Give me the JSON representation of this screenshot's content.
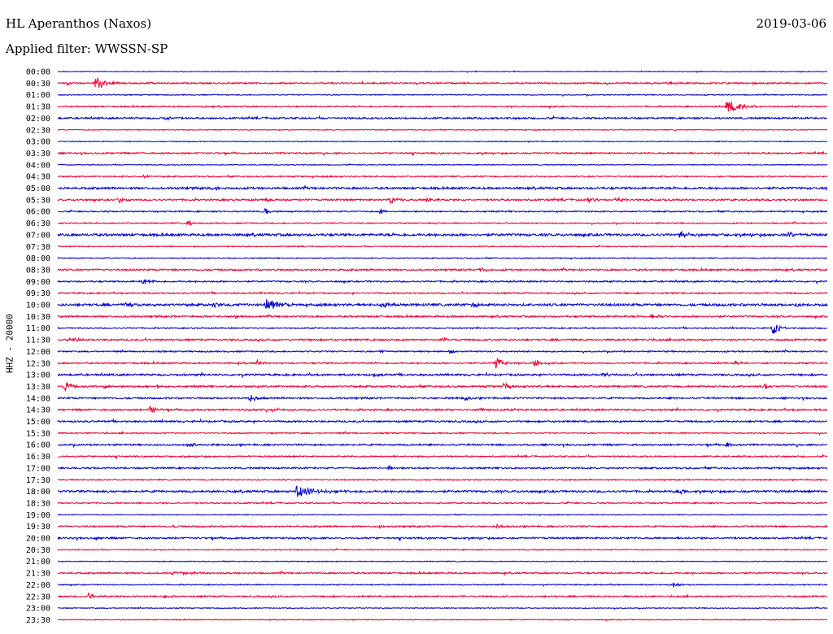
{
  "header": {
    "station": "HL Aperanthos (Naxos)",
    "date": "2019-03-06",
    "filter": "Applied filter: WWSSN-SP"
  },
  "chart_data": {
    "type": "line",
    "title": "HL Aperanthos (Naxos)",
    "subtitle": "Applied filter: WWSSN-SP",
    "ylabel": "HHZ - 20000",
    "rows": [
      "00:00",
      "00:30",
      "01:00",
      "01:30",
      "02:00",
      "02:30",
      "03:00",
      "03:30",
      "04:00",
      "04:30",
      "05:00",
      "05:30",
      "06:00",
      "06:30",
      "07:00",
      "07:30",
      "08:00",
      "08:30",
      "09:00",
      "09:30",
      "10:00",
      "10:30",
      "11:00",
      "11:30",
      "12:00",
      "12:30",
      "13:00",
      "13:30",
      "14:00",
      "14:30",
      "15:00",
      "15:30",
      "16:00",
      "16:30",
      "17:00",
      "17:30",
      "18:00",
      "18:30",
      "19:00",
      "19:30",
      "20:00",
      "20:30",
      "21:00",
      "21:30",
      "22:00",
      "22:30",
      "23:00",
      "23:30"
    ],
    "colors": [
      "#0000cc",
      "#ee0033"
    ],
    "noise": [
      0.4,
      0.9,
      0.6,
      0.8,
      1.0,
      0.5,
      0.5,
      0.9,
      0.5,
      0.8,
      1.2,
      1.0,
      0.8,
      0.7,
      1.4,
      0.6,
      0.6,
      1.0,
      0.9,
      0.8,
      1.4,
      1.0,
      0.7,
      1.0,
      0.8,
      0.9,
      1.1,
      1.1,
      1.0,
      1.0,
      1.0,
      0.8,
      1.0,
      0.8,
      1.0,
      0.7,
      1.2,
      0.8,
      0.5,
      0.9,
      1.0,
      0.6,
      0.5,
      0.9,
      0.6,
      0.9,
      0.5,
      0.5
    ],
    "events": [
      {
        "row": 1,
        "pos": 0.05,
        "amp": 9,
        "dur": 0.03
      },
      {
        "row": 1,
        "pos": 0.12,
        "amp": 2,
        "dur": 0.02
      },
      {
        "row": 1,
        "pos": 0.79,
        "amp": 2,
        "dur": 0.02
      },
      {
        "row": 3,
        "pos": 0.87,
        "amp": 9,
        "dur": 0.05
      },
      {
        "row": 3,
        "pos": 0.19,
        "amp": 2,
        "dur": 0.01
      },
      {
        "row": 4,
        "pos": 0.14,
        "amp": 2,
        "dur": 0.02
      },
      {
        "row": 9,
        "pos": 0.11,
        "amp": 4,
        "dur": 0.02
      },
      {
        "row": 10,
        "pos": 0.2,
        "amp": 3,
        "dur": 0.02
      },
      {
        "row": 11,
        "pos": 0.08,
        "amp": 4,
        "dur": 0.02
      },
      {
        "row": 11,
        "pos": 0.27,
        "amp": 3,
        "dur": 0.02
      },
      {
        "row": 11,
        "pos": 0.43,
        "amp": 6,
        "dur": 0.02
      },
      {
        "row": 11,
        "pos": 0.48,
        "amp": 3,
        "dur": 0.03
      },
      {
        "row": 11,
        "pos": 0.69,
        "amp": 3,
        "dur": 0.02
      },
      {
        "row": 11,
        "pos": 0.73,
        "amp": 3,
        "dur": 0.02
      },
      {
        "row": 12,
        "pos": 0.27,
        "amp": 6,
        "dur": 0.01
      },
      {
        "row": 12,
        "pos": 0.42,
        "amp": 4,
        "dur": 0.01
      },
      {
        "row": 13,
        "pos": 0.17,
        "amp": 6,
        "dur": 0.01
      },
      {
        "row": 13,
        "pos": 0.49,
        "amp": 2,
        "dur": 0.01
      },
      {
        "row": 14,
        "pos": 0.81,
        "amp": 4,
        "dur": 0.02
      },
      {
        "row": 14,
        "pos": 0.95,
        "amp": 4,
        "dur": 0.02
      },
      {
        "row": 17,
        "pos": 0.55,
        "amp": 3,
        "dur": 0.02
      },
      {
        "row": 18,
        "pos": 0.11,
        "amp": 4,
        "dur": 0.02
      },
      {
        "row": 20,
        "pos": 0.09,
        "amp": 4,
        "dur": 0.03
      },
      {
        "row": 20,
        "pos": 0.2,
        "amp": 4,
        "dur": 0.03
      },
      {
        "row": 20,
        "pos": 0.27,
        "amp": 10,
        "dur": 0.04
      },
      {
        "row": 20,
        "pos": 0.42,
        "amp": 4,
        "dur": 0.03
      },
      {
        "row": 20,
        "pos": 0.54,
        "amp": 3,
        "dur": 0.02
      },
      {
        "row": 20,
        "pos": 0.96,
        "amp": 3,
        "dur": 0.02
      },
      {
        "row": 21,
        "pos": 0.23,
        "amp": 3,
        "dur": 0.02
      },
      {
        "row": 21,
        "pos": 0.77,
        "amp": 3,
        "dur": 0.03
      },
      {
        "row": 22,
        "pos": 0.93,
        "amp": 9,
        "dur": 0.02
      },
      {
        "row": 23,
        "pos": 0.02,
        "amp": 5,
        "dur": 0.02
      },
      {
        "row": 23,
        "pos": 0.5,
        "amp": 5,
        "dur": 0.01
      },
      {
        "row": 24,
        "pos": 0.42,
        "amp": 2,
        "dur": 0.02
      },
      {
        "row": 24,
        "pos": 0.51,
        "amp": 3,
        "dur": 0.01
      },
      {
        "row": 25,
        "pos": 0.26,
        "amp": 4,
        "dur": 0.02
      },
      {
        "row": 25,
        "pos": 0.57,
        "amp": 10,
        "dur": 0.02
      },
      {
        "row": 25,
        "pos": 0.62,
        "amp": 5,
        "dur": 0.02
      },
      {
        "row": 25,
        "pos": 0.88,
        "amp": 3,
        "dur": 0.02
      },
      {
        "row": 26,
        "pos": 0.41,
        "amp": 3,
        "dur": 0.02
      },
      {
        "row": 26,
        "pos": 0.71,
        "amp": 3,
        "dur": 0.03
      },
      {
        "row": 27,
        "pos": 0.01,
        "amp": 8,
        "dur": 0.02
      },
      {
        "row": 27,
        "pos": 0.06,
        "amp": 5,
        "dur": 0.01
      },
      {
        "row": 27,
        "pos": 0.13,
        "amp": 3,
        "dur": 0.01
      },
      {
        "row": 27,
        "pos": 0.58,
        "amp": 4,
        "dur": 0.02
      },
      {
        "row": 27,
        "pos": 0.92,
        "amp": 4,
        "dur": 0.01
      },
      {
        "row": 28,
        "pos": 0.25,
        "amp": 5,
        "dur": 0.02
      },
      {
        "row": 28,
        "pos": 0.53,
        "amp": 4,
        "dur": 0.01
      },
      {
        "row": 29,
        "pos": 0.12,
        "amp": 6,
        "dur": 0.02
      },
      {
        "row": 29,
        "pos": 0.28,
        "amp": 2,
        "dur": 0.02
      },
      {
        "row": 29,
        "pos": 0.55,
        "amp": 3,
        "dur": 0.01
      },
      {
        "row": 32,
        "pos": 0.17,
        "amp": 3,
        "dur": 0.03
      },
      {
        "row": 32,
        "pos": 0.87,
        "amp": 3,
        "dur": 0.02
      },
      {
        "row": 34,
        "pos": 0.43,
        "amp": 4,
        "dur": 0.01
      },
      {
        "row": 36,
        "pos": 0.2,
        "amp": 2,
        "dur": 0.02
      },
      {
        "row": 36,
        "pos": 0.31,
        "amp": 7,
        "dur": 0.08
      },
      {
        "row": 36,
        "pos": 0.81,
        "amp": 3,
        "dur": 0.01
      },
      {
        "row": 39,
        "pos": 0.15,
        "amp": 2,
        "dur": 0.01
      },
      {
        "row": 39,
        "pos": 0.57,
        "amp": 4,
        "dur": 0.02
      },
      {
        "row": 39,
        "pos": 0.42,
        "amp": 3,
        "dur": 0.01
      },
      {
        "row": 40,
        "pos": 0.05,
        "amp": 2,
        "dur": 0.02
      },
      {
        "row": 43,
        "pos": 0.15,
        "amp": 2,
        "dur": 0.07
      },
      {
        "row": 44,
        "pos": 0.8,
        "amp": 3,
        "dur": 0.02
      },
      {
        "row": 45,
        "pos": 0.04,
        "amp": 4,
        "dur": 0.03
      },
      {
        "row": 45,
        "pos": 0.14,
        "amp": 2,
        "dur": 0.02
      }
    ]
  }
}
